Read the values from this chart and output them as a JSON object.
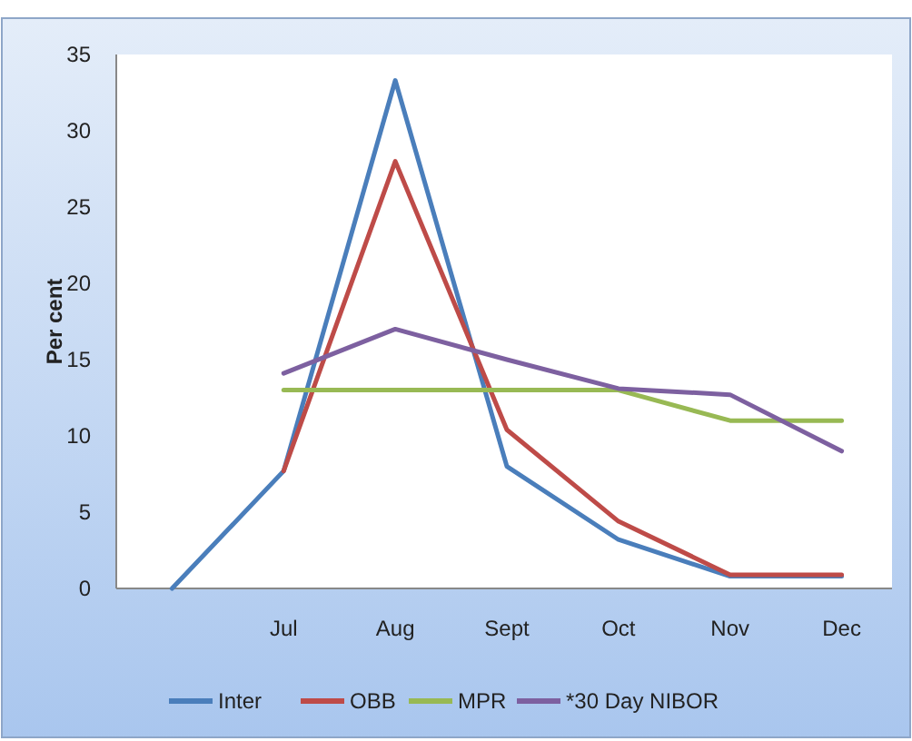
{
  "chart_data": {
    "type": "line",
    "ylabel": "Per cent",
    "categories": [
      null,
      "Jul",
      "Aug",
      "Sept",
      "Oct",
      "Nov",
      "Dec"
    ],
    "series": [
      {
        "name": "Inter",
        "color": "#4a7ebb",
        "values": [
          0,
          7.7,
          33.3,
          8,
          3.2,
          0.8,
          0.8
        ]
      },
      {
        "name": "OBB",
        "color": "#be4b48",
        "values": [
          null,
          7.7,
          28,
          10.4,
          4.4,
          0.9,
          0.9
        ]
      },
      {
        "name": "MPR",
        "color": "#98b954",
        "values": [
          null,
          13,
          13,
          13,
          13,
          11,
          11
        ]
      },
      {
        "name": "*30 Day NIBOR",
        "color": "#7d60a0",
        "values": [
          null,
          14.1,
          17,
          15,
          13.1,
          12.7,
          9
        ]
      }
    ],
    "ylim": [
      0,
      35
    ],
    "yticks": [
      0,
      5,
      10,
      15,
      20,
      25,
      30,
      35
    ],
    "legend": "bottom",
    "grid": false,
    "marker": "none"
  }
}
